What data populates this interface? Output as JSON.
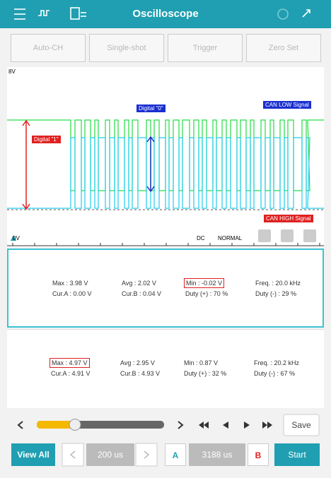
{
  "header": {
    "title": "Oscilloscope"
  },
  "toolbar": [
    "Auto-CH",
    "Single-shot",
    "Trigger",
    "Zero Set"
  ],
  "scope": {
    "top_label": "8V",
    "bottom_label": "0V",
    "digital_0": "Digital \"0\"",
    "digital_1": "Digital \"1\"",
    "can_low": "CAN LOW Signal",
    "can_high": "CAN HIGH Signal",
    "coupling": "DC",
    "mode": "NORMAL"
  },
  "panels": [
    {
      "rows": [
        [
          "Max : 3.98 V",
          "Avg : 2.02 V",
          "Min : -0.02 V",
          "Freq. : 20.0 kHz"
        ],
        [
          "Cur.A : 0.00 V",
          "Cur.B : 0.04 V",
          "Duty (+) : 70 %",
          "Duty (-) : 29 %"
        ]
      ]
    },
    {
      "rows": [
        [
          "Max : 4.97 V",
          "Avg : 2.95 V",
          "Min : 0.87 V",
          "Freq. : 20.2 kHz"
        ],
        [
          "Cur.A : 4.91 V",
          "Cur.B : 4.93 V",
          "Duty (+) : 32 %",
          "Duty (-) : 67 %"
        ]
      ]
    }
  ],
  "controls": {
    "save": "Save",
    "view_all": "View All",
    "time_div": "200 us",
    "cursor_a": "A",
    "cursor_position": "3188 us",
    "cursor_b": "B",
    "start": "Start"
  }
}
